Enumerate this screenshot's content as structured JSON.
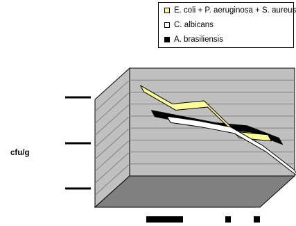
{
  "chart_data": {
    "type": "line",
    "view": "3d",
    "xlabel": "",
    "ylabel": "cfu/g",
    "legend_position": "top-right",
    "grid": true,
    "categories": [
      "",
      "",
      "",
      "",
      "",
      ""
    ],
    "series": [
      {
        "name": "E. coli + P. aeruginosa + S. aureus",
        "color": "#ffff99",
        "values": [
          6.0,
          4.8,
          5.0,
          3.0,
          2.8,
          null
        ]
      },
      {
        "name": "C. albicans",
        "color": "#ffffff",
        "values": [
          null,
          4.3,
          4.0,
          3.6,
          2.4,
          0.8
        ]
      },
      {
        "name": "A. brasiliensis",
        "color": "#000000",
        "values": [
          null,
          5.6,
          5.2,
          4.8,
          4.6,
          3.8
        ]
      }
    ],
    "colors": {
      "wall": "#c0c0c0",
      "floor": "#808080",
      "gridline": "#808080"
    }
  }
}
